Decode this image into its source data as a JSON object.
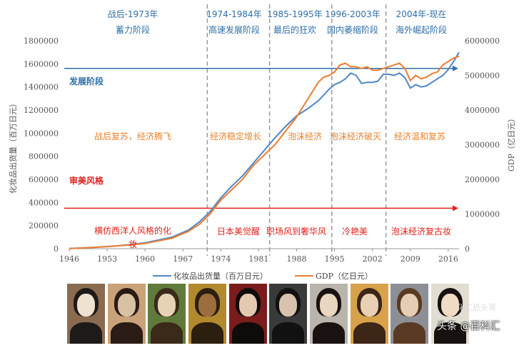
{
  "chart_data": {
    "type": "line",
    "x_ticks": [
      "1946",
      "1953",
      "1960",
      "1967",
      "1974",
      "1981",
      "1988",
      "1995",
      "2002",
      "2009",
      "2016"
    ],
    "y_left_ticks": [
      "0",
      "200000",
      "400000",
      "600000",
      "800000",
      "1000000",
      "1200000",
      "1400000",
      "1600000",
      "1800000"
    ],
    "y_right_ticks": [
      "0",
      "1000000",
      "2000000",
      "3000000",
      "4000000",
      "5000000",
      "6000000"
    ],
    "y_left_label": "化妆品出货量（百万日元）",
    "y_right_label": "GDP（亿日元）",
    "xlim": [
      1946,
      2018
    ],
    "ylim_left": [
      0,
      1800000
    ],
    "ylim_right": [
      0,
      6000000
    ],
    "series": [
      {
        "name": "化妆品出货量（百万日元）",
        "axis": "left",
        "color": "#4f86c6",
        "x": [
          1946,
          1950,
          1955,
          1960,
          1965,
          1968,
          1970,
          1972,
          1974,
          1976,
          1978,
          1980,
          1982,
          1984,
          1986,
          1988,
          1990,
          1992,
          1993,
          1994,
          1995,
          1996,
          1997,
          1998,
          1999,
          2000,
          2001,
          2002,
          2003,
          2004,
          2005,
          2006,
          2007,
          2008,
          2009,
          2010,
          2011,
          2012,
          2013,
          2014,
          2015,
          2016,
          2017,
          2018
        ],
        "values": [
          2000,
          10000,
          25000,
          50000,
          100000,
          160000,
          230000,
          320000,
          440000,
          540000,
          630000,
          740000,
          850000,
          960000,
          1060000,
          1150000,
          1210000,
          1280000,
          1330000,
          1380000,
          1420000,
          1440000,
          1470000,
          1520000,
          1500000,
          1430000,
          1440000,
          1440000,
          1450000,
          1510000,
          1510000,
          1500000,
          1520000,
          1480000,
          1390000,
          1420000,
          1400000,
          1410000,
          1440000,
          1470000,
          1500000,
          1550000,
          1620000,
          1700000
        ]
      },
      {
        "name": "GDP（亿日元）",
        "axis": "right",
        "color": "#ed7d31",
        "x": [
          1946,
          1950,
          1955,
          1960,
          1965,
          1968,
          1970,
          1972,
          1974,
          1976,
          1978,
          1980,
          1982,
          1984,
          1986,
          1988,
          1990,
          1992,
          1993,
          1994,
          1995,
          1996,
          1997,
          1998,
          1999,
          2000,
          2001,
          2002,
          2003,
          2004,
          2005,
          2006,
          2007,
          2008,
          2009,
          2010,
          2011,
          2012,
          2013,
          2014,
          2015,
          2016,
          2017,
          2018
        ],
        "values": [
          3000,
          30000,
          80000,
          150000,
          300000,
          500000,
          700000,
          1000000,
          1400000,
          1700000,
          2000000,
          2400000,
          2700000,
          3000000,
          3400000,
          3800000,
          4300000,
          4800000,
          4950000,
          5000000,
          5100000,
          5300000,
          5350000,
          5250000,
          5250000,
          5200000,
          5250000,
          5150000,
          5150000,
          5200000,
          5250000,
          5300000,
          5350000,
          5200000,
          4850000,
          5000000,
          4900000,
          4950000,
          5050000,
          5100000,
          5300000,
          5400000,
          5500000,
          5550000
        ]
      }
    ],
    "reference_lines": [
      {
        "label": "发展阶段",
        "color": "#2e6fa7",
        "y_left": 1560000
      },
      {
        "label": "审美风格",
        "color": "#e0201a",
        "y_left": 350000
      }
    ],
    "period_dividers": [
      1971.5,
      1983,
      1994.5,
      2004.5
    ],
    "legend_position": "bottom",
    "grid": false
  },
  "phases": [
    {
      "line1": "战后-1973年",
      "line2": "蓄力阶段"
    },
    {
      "line1": "1974-1984年",
      "line2": "高速发展阶段"
    },
    {
      "line1": "1985-1995年",
      "line2": "最后的狂欢"
    },
    {
      "line1": "1996-2003年",
      "line2": "国内萎缩阶段"
    },
    {
      "line1": "2004年-现在",
      "line2": "海外崛起阶段"
    }
  ],
  "eras": [
    "战后复苏，经济腾飞",
    "经济稳定增长",
    "泡沫经济",
    "泡沫经济破灭",
    "经济温和复苏"
  ],
  "styles": [
    "横仿西洋人风格的化",
    "妆",
    "日本美觉醒",
    "职场风到奢华风",
    "冷艳美",
    "泡沫经济复古妆"
  ],
  "ref_labels": {
    "dev": "发展阶段",
    "style": "审美风格"
  },
  "legend": {
    "s1": "化妆品出货量（百万日元）",
    "s2": "GDP（亿日元）"
  },
  "watermark": {
    "main": "头条 @百科汇",
    "sub": "化工恐头哥"
  },
  "photos_count": 10
}
